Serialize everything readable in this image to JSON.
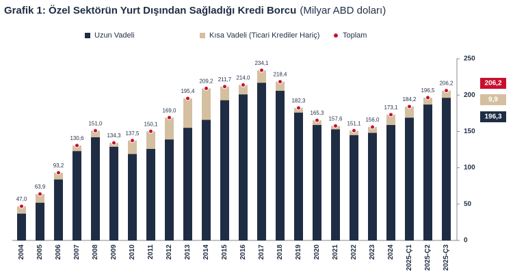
{
  "chart_data": {
    "type": "stacked-bar",
    "title": "Grafik 1: Özel Sektörün Yurt Dışından Sağladığı Kredi Borcu",
    "subtitle": "(Milyar ABD doları)",
    "categories": [
      "2004",
      "2005",
      "2006",
      "2007",
      "2008",
      "2009",
      "2010",
      "2011",
      "2012",
      "2013",
      "2014",
      "2015",
      "2016",
      "2017",
      "2018",
      "2019",
      "2020",
      "2021",
      "2022",
      "2023",
      "2024",
      "2025-Ç1",
      "2025-Ç2",
      "2025-Ç3"
    ],
    "series": [
      {
        "name": "Uzun Vadeli",
        "color": "#1f2d44",
        "kind": "bar",
        "values": [
          37,
          52,
          84,
          123,
          142,
          129,
          119,
          126,
          139,
          155,
          166,
          193,
          201,
          217,
          206,
          176,
          159,
          153,
          145,
          148,
          159,
          169,
          187,
          196.3
        ],
        "value_labels": [
          null,
          null,
          null,
          null,
          null,
          null,
          null,
          null,
          null,
          null,
          null,
          null,
          null,
          null,
          null,
          null,
          null,
          null,
          null,
          null,
          null,
          null,
          null,
          "196,3"
        ]
      },
      {
        "name": "Kısa Vadeli (Ticari Krediler Hariç)",
        "color": "#d4bfa0",
        "kind": "bar",
        "values": [
          10,
          11.9,
          9.2,
          7.6,
          9,
          5.3,
          18.5,
          24.1,
          30,
          40.4,
          43.2,
          18.7,
          13,
          17.1,
          12.4,
          6.3,
          6.3,
          4.6,
          6.1,
          8,
          14.1,
          15.2,
          9.5,
          9.9
        ],
        "value_labels": [
          null,
          null,
          null,
          null,
          null,
          null,
          null,
          null,
          null,
          null,
          null,
          null,
          null,
          null,
          null,
          null,
          null,
          null,
          null,
          null,
          null,
          null,
          null,
          "9,9"
        ]
      },
      {
        "name": "Toplam",
        "color": "#c8102e",
        "kind": "marker",
        "values": [
          47.0,
          63.9,
          93.2,
          130.6,
          151.0,
          134.3,
          137.5,
          150.1,
          169.0,
          195.4,
          209.2,
          211.7,
          214.0,
          234.1,
          218.4,
          182.3,
          165.3,
          157.6,
          151.1,
          156.0,
          173.1,
          184.2,
          196.5,
          206.2
        ],
        "value_labels": [
          "47,0",
          "63,9",
          "93,2",
          "130,6",
          "151,0",
          "134,3",
          "137,5",
          "150,1",
          "169,0",
          "195,4",
          "209,2",
          "211,7",
          "214,0",
          "234,1",
          "218,4",
          "182,3",
          "165,3",
          "157,6",
          "151,1",
          "156,0",
          "173,1",
          "184,2",
          "196,5",
          "206,2"
        ]
      }
    ],
    "ylim": [
      0,
      250
    ],
    "yticks": [
      0,
      50,
      100,
      150,
      200,
      250
    ],
    "axis_side": "right"
  }
}
